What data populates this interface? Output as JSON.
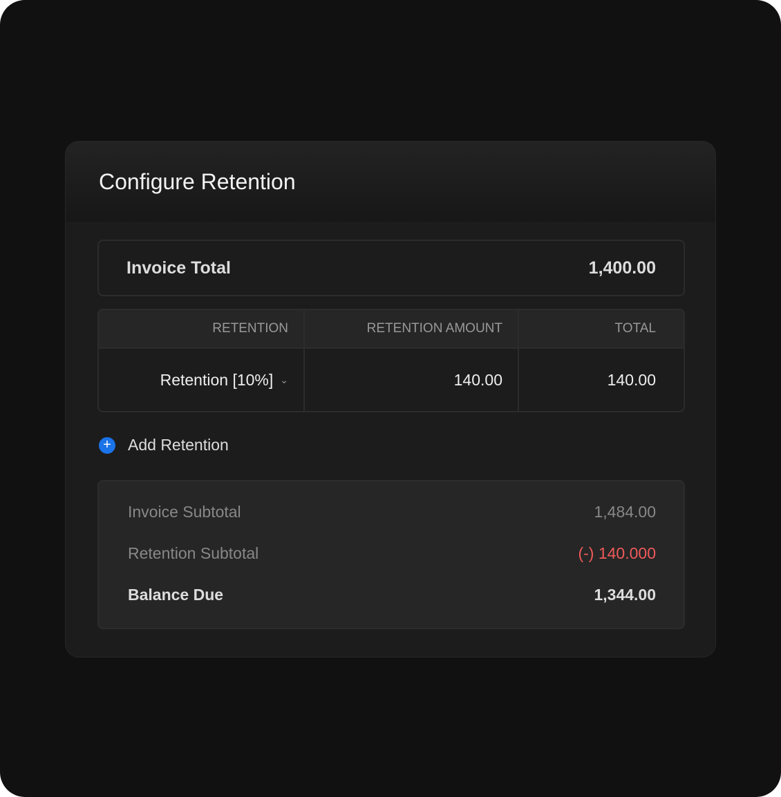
{
  "title": "Configure Retention",
  "invoice_total": {
    "label": "Invoice Total",
    "value": "1,400.00"
  },
  "table": {
    "headers": [
      "RETENTION",
      "RETENTION AMOUNT",
      "TOTAL"
    ],
    "rows": [
      {
        "retention": "Retention [10%]",
        "amount": "140.00",
        "total": "140.00"
      }
    ]
  },
  "add_label": "Add Retention",
  "summary": [
    {
      "label": "Invoice Subtotal",
      "value": "1,484.00"
    },
    {
      "label": "Retention Subtotal",
      "value": "(-) 140.000"
    },
    {
      "label": "Balance Due",
      "value": "1,344.00"
    }
  ],
  "colors": {
    "accent": "#1a73e8",
    "negative": "#ef5a5a"
  }
}
